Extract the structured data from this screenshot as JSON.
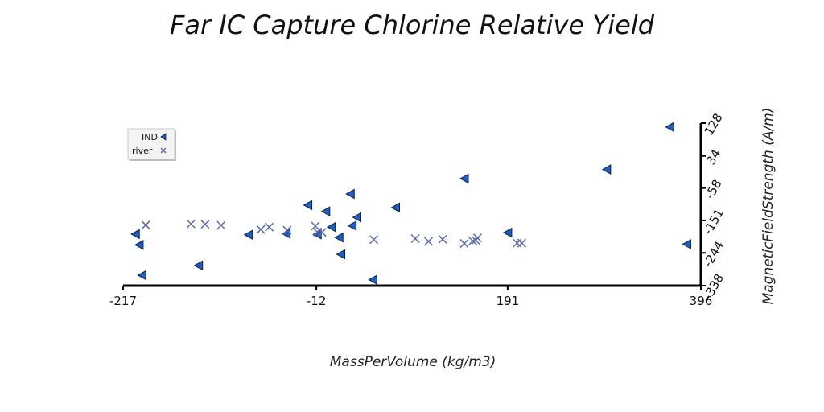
{
  "chart_data": {
    "type": "scatter",
    "title": "Far IC Capture Chlorine Relative Yield",
    "xlabel": "MassPerVolume (kg/m3)",
    "ylabel": "MagneticFieldStrength (A/m)",
    "xlim": [
      -217,
      396
    ],
    "ylim": [
      -338,
      128
    ],
    "x_ticks": [
      "-217",
      "-12",
      "191",
      "396"
    ],
    "y_ticks": [
      "-338",
      "-244",
      "-151",
      "-58",
      "34",
      "128"
    ],
    "legend_position": "top-left",
    "series": [
      {
        "name": "IND",
        "marker": "triangle-left",
        "color": "#1f5fbf",
        "points": [
          [
            -200,
            -221
          ],
          [
            -197,
            -308
          ],
          [
            -204,
            -190
          ],
          [
            -137,
            -280
          ],
          [
            -84,
            -192
          ],
          [
            -44,
            -189
          ],
          [
            -21,
            -107
          ],
          [
            -11,
            -191
          ],
          [
            -2,
            -125
          ],
          [
            4,
            -170
          ],
          [
            12,
            -200
          ],
          [
            14,
            -248
          ],
          [
            26,
            -166
          ],
          [
            31,
            -142
          ],
          [
            24,
            -75
          ],
          [
            48,
            -321
          ],
          [
            72,
            -114
          ],
          [
            145,
            -31
          ],
          [
            191,
            -186
          ],
          [
            296,
            -5
          ],
          [
            363,
            117
          ],
          [
            381,
            -219
          ]
        ]
      },
      {
        "name": "river",
        "marker": "x",
        "color": "#5a6aa8",
        "points": [
          [
            -193,
            -164
          ],
          [
            -145,
            -161
          ],
          [
            -130,
            -162
          ],
          [
            -113,
            -165
          ],
          [
            -71,
            -177
          ],
          [
            -62,
            -170
          ],
          [
            -43,
            -179
          ],
          [
            -13,
            -167
          ],
          [
            -11,
            -184
          ],
          [
            -6,
            -185
          ],
          [
            49,
            -206
          ],
          [
            93,
            -203
          ],
          [
            107,
            -211
          ],
          [
            122,
            -205
          ],
          [
            145,
            -217
          ],
          [
            154,
            -210
          ],
          [
            157,
            -208
          ],
          [
            159,
            -201
          ],
          [
            201,
            -216
          ],
          [
            206,
            -216
          ]
        ]
      }
    ]
  }
}
